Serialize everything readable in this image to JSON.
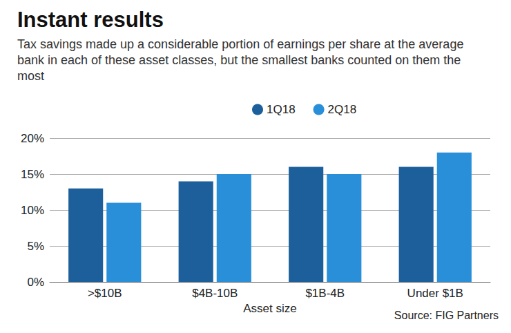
{
  "chart_data": {
    "type": "bar",
    "title": "Instant results",
    "subtitle": "Tax savings made up a considerable portion of earnings per share at the average bank in each of these asset classes, but the smallest banks counted on them the most",
    "x_label": "Asset size",
    "source": "Source: FIG Partners",
    "categories": [
      ">$10B",
      "$4B-10B",
      "$1B-4B",
      "Under $1B"
    ],
    "series": [
      {
        "name": "1Q18",
        "color": "#1d5f9b",
        "values": [
          13,
          14,
          16,
          16
        ]
      },
      {
        "name": "2Q18",
        "color": "#2a8fd9",
        "values": [
          11,
          15,
          15,
          18
        ]
      }
    ],
    "ylim": [
      0,
      20
    ],
    "yticks": [
      {
        "value": 0,
        "label": "0%"
      },
      {
        "value": 5,
        "label": "5%"
      },
      {
        "value": 10,
        "label": "10%"
      },
      {
        "value": 15,
        "label": "15%"
      },
      {
        "value": 20,
        "label": "20%"
      }
    ],
    "grid": true,
    "legend": "top"
  }
}
